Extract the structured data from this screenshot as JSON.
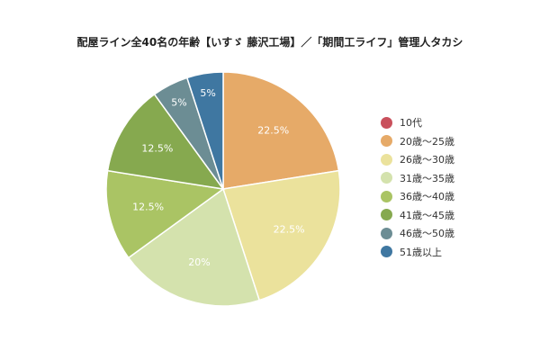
{
  "chart_data": {
    "type": "pie",
    "title": "配屋ライン全40名の年齢【いすゞ 藤沢工場】／「期間工ライフ」管理人タカシ",
    "series": [
      {
        "name": "10代",
        "value": 0,
        "label": "",
        "color": "#c9505c"
      },
      {
        "name": "20歳～25歳",
        "value": 22.5,
        "label": "22.5%",
        "color": "#e6aa68"
      },
      {
        "name": "26歳～30歳",
        "value": 22.5,
        "label": "22.5%",
        "color": "#ebe29c"
      },
      {
        "name": "31歳～35歳",
        "value": 20,
        "label": "20%",
        "color": "#d4e2ad"
      },
      {
        "name": "36歳～40歳",
        "value": 12.5,
        "label": "12.5%",
        "color": "#aac464"
      },
      {
        "name": "41歳～45歳",
        "value": 12.5,
        "label": "12.5%",
        "color": "#86a94f"
      },
      {
        "name": "46歳～50歳",
        "value": 5,
        "label": "5%",
        "color": "#6c8d94"
      },
      {
        "name": "51歳以上",
        "value": 5,
        "label": "5%",
        "color": "#3f77a1"
      }
    ],
    "legend_position": "right"
  }
}
